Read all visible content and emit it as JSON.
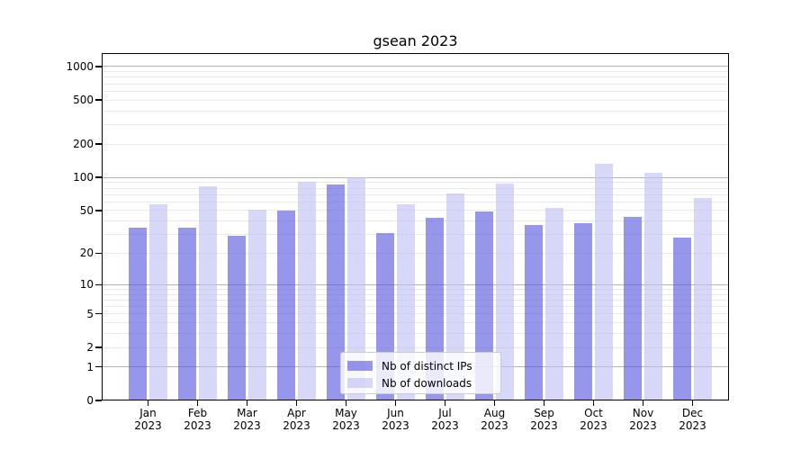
{
  "title": "gsean 2023",
  "chart_data": {
    "type": "bar",
    "title": "gsean 2023",
    "categories": [
      "Jan",
      "Feb",
      "Mar",
      "Apr",
      "May",
      "Jun",
      "Jul",
      "Aug",
      "Sep",
      "Oct",
      "Nov",
      "Dec"
    ],
    "year_label": "2023",
    "series": [
      {
        "name": "Nb of distinct IPs",
        "color": "rgba(85,85,221,0.62)",
        "color_hex": "#9999ea",
        "values": [
          35,
          35,
          29,
          50,
          86,
          31,
          43,
          49,
          37,
          38,
          44,
          28
        ]
      },
      {
        "name": "Nb of downloads",
        "color": "rgba(190,190,242,0.62)",
        "color_hex": "#d8d8f7",
        "values": [
          57,
          83,
          51,
          92,
          100,
          57,
          72,
          88,
          53,
          133,
          111,
          65
        ]
      }
    ],
    "y_axis": {
      "scale": "log10(value+1)",
      "ticks": [
        0,
        1,
        2,
        5,
        10,
        20,
        50,
        100,
        200,
        500,
        1000
      ],
      "major_gridlines": [
        1,
        10,
        100,
        1000
      ],
      "minor_gridlines": [
        2,
        3,
        4,
        5,
        6,
        7,
        8,
        9,
        20,
        30,
        40,
        50,
        60,
        70,
        80,
        90,
        200,
        300,
        400,
        500,
        600,
        700,
        800,
        900
      ],
      "top_value": 1322
    },
    "x_axis": {
      "tick_label_line2": "2023"
    },
    "legend": {
      "position": "lower center",
      "entries": [
        "Nb of distinct IPs",
        "Nb of downloads"
      ]
    },
    "grid": true
  },
  "colors": {
    "background": "#ffffff",
    "axis": "#000000",
    "major_grid": "#b4b4b4",
    "minor_grid": "#e9e9e9",
    "bar_distinct_ips": "#9999ea",
    "bar_downloads": "#d8d8f7"
  }
}
